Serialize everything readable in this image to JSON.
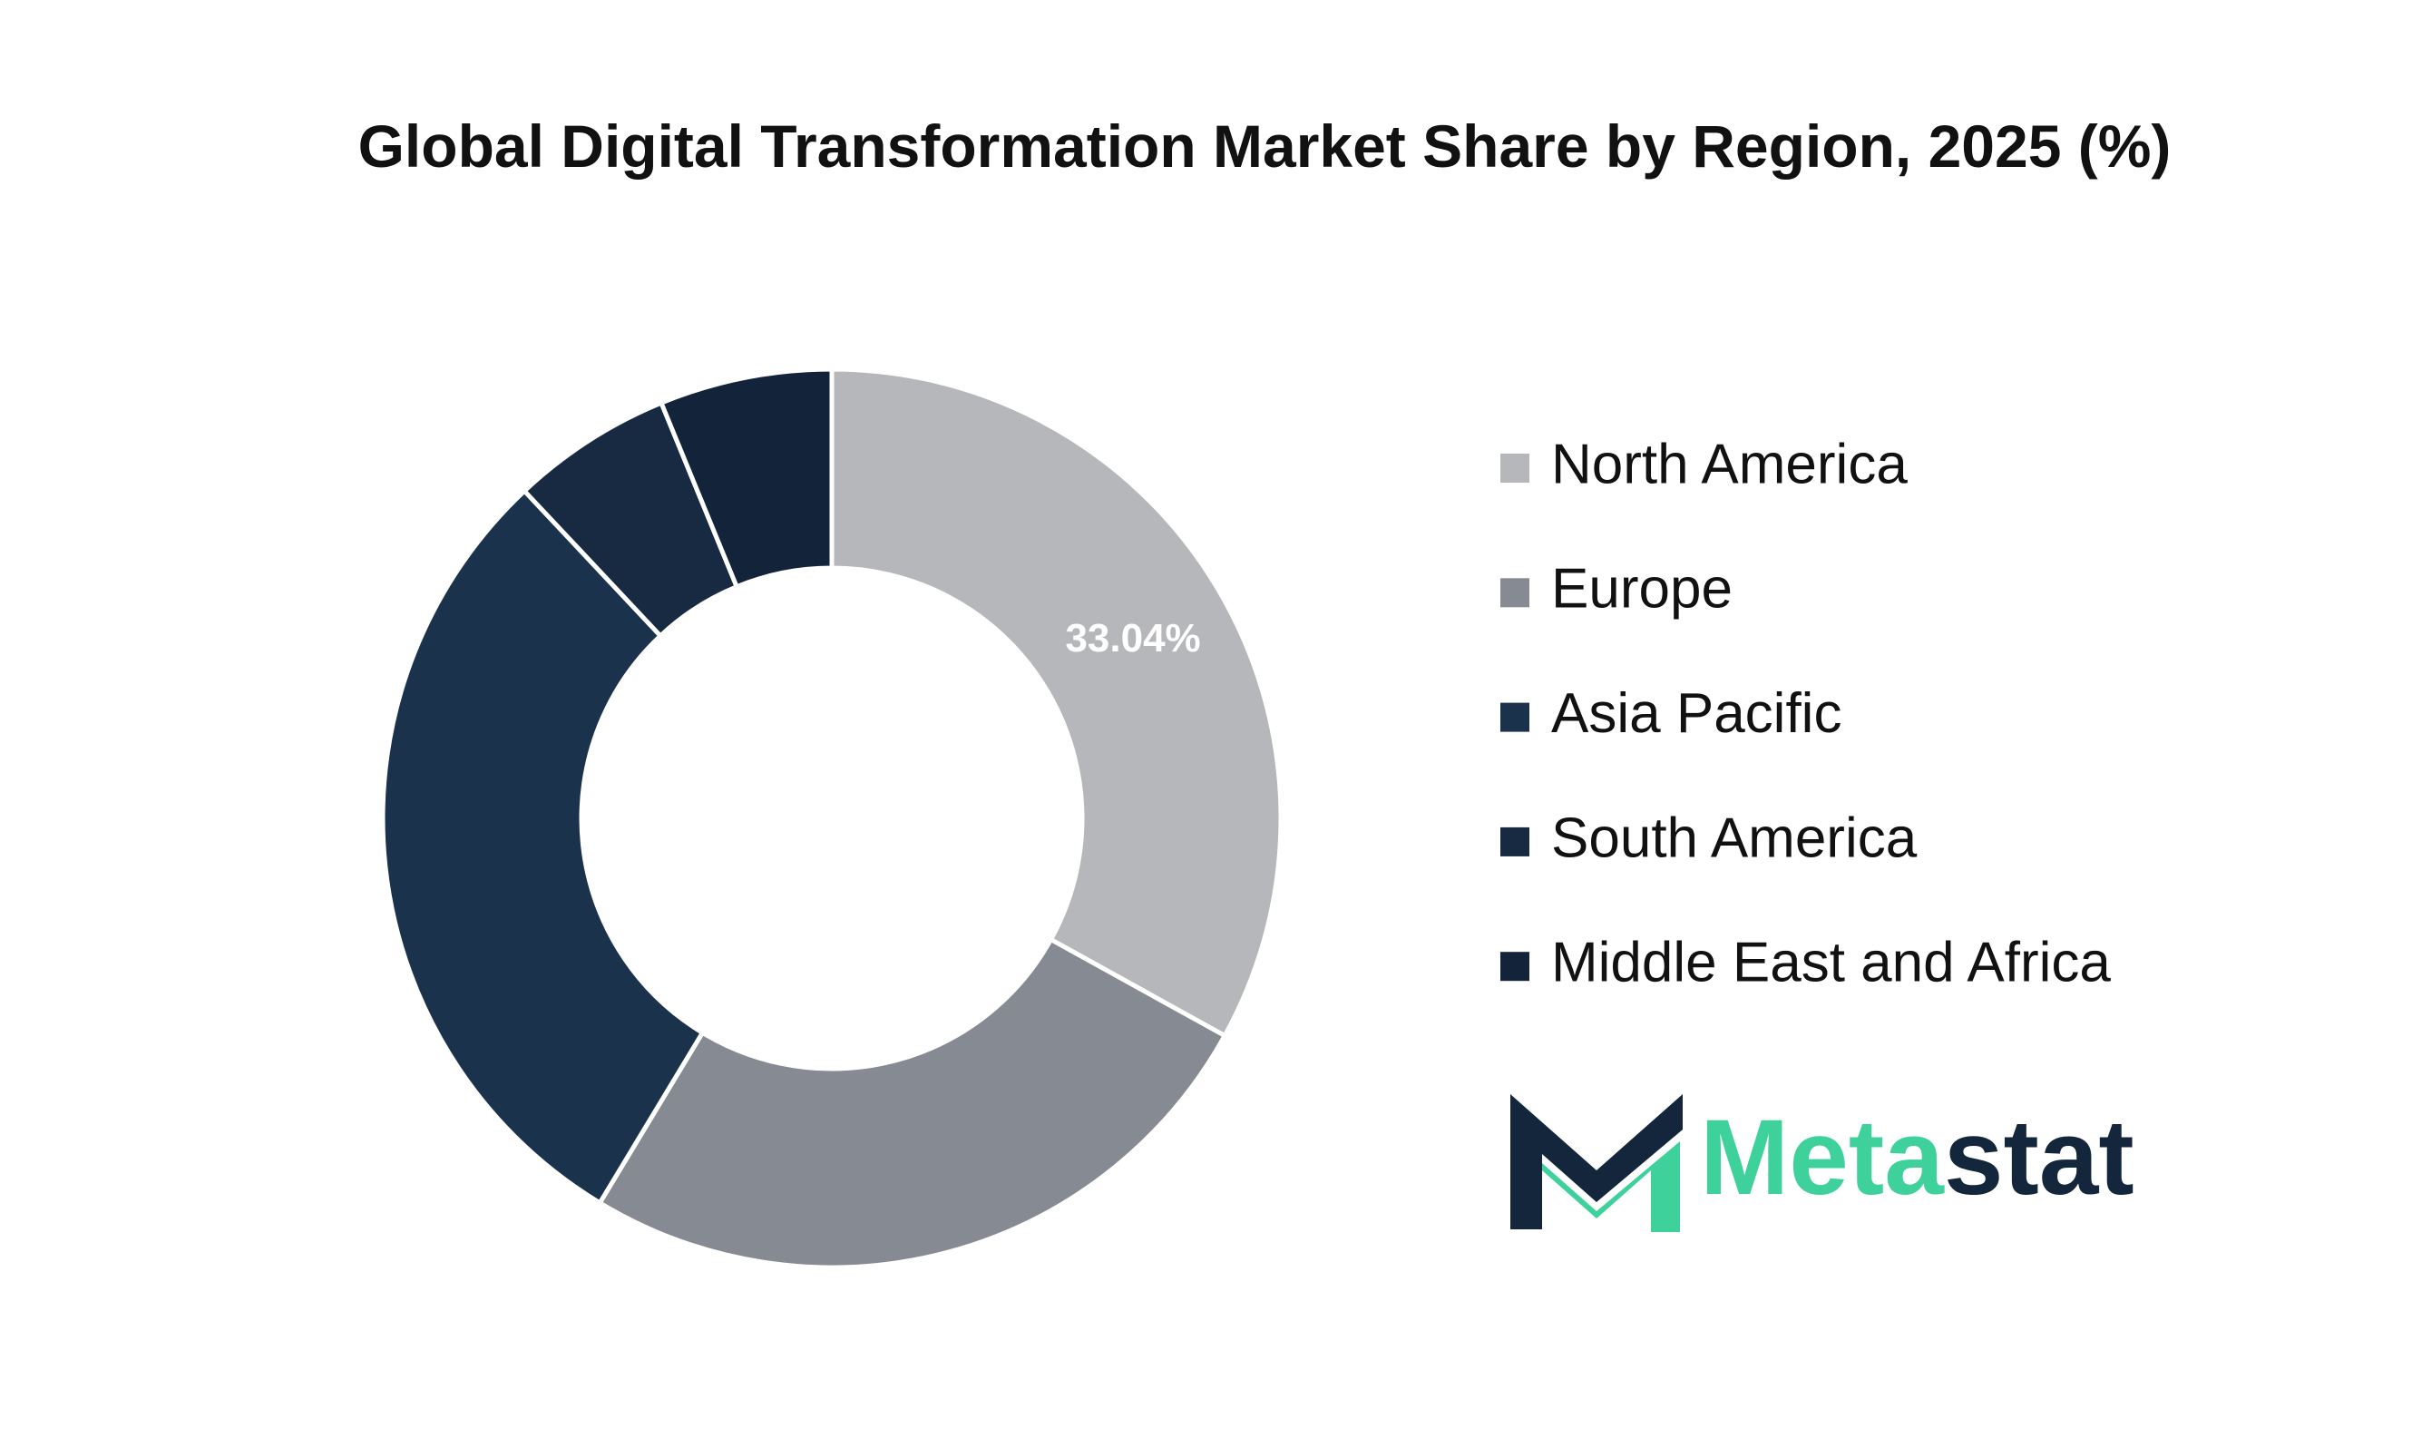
{
  "chart_data": {
    "type": "donut",
    "title": "Global Digital Transformation Market Share by Region, 2025 (%)",
    "categories": [
      "North America",
      "Europe",
      "Asia Pacific",
      "South America",
      "Middle East and Africa"
    ],
    "values": [
      33.04,
      25.6,
      29.36,
      5.8,
      6.2
    ],
    "value_labels": [
      "33.04%",
      null,
      null,
      null,
      null
    ],
    "colors": [
      "#b5b7bb",
      "#858a93",
      "#1b324d",
      "#172a42",
      "#12233a"
    ],
    "legend": "right"
  },
  "logo": {
    "parts": [
      "Meta",
      "stat"
    ]
  }
}
